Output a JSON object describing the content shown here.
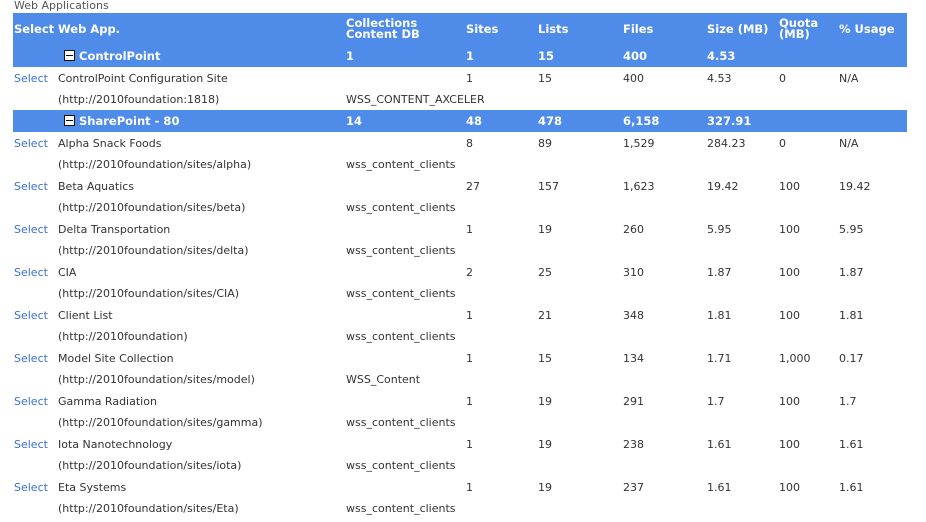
{
  "section_title": "Web Applications",
  "columns": [
    "Select",
    "Web App.",
    "Collections Content DB",
    "Sites",
    "Lists",
    "Files",
    "Size (MB)",
    "Quota (MB)",
    "% Usage"
  ],
  "colors": {
    "header_bg": "#4f8be8",
    "link": "#3b6fd0"
  },
  "groups": [
    {
      "name": "ControlPoint",
      "collections": "1",
      "sites": "1",
      "lists": "15",
      "files": "400",
      "size": "4.53",
      "rows": [
        {
          "select": "Select",
          "name": "ControlPoint Configuration Site",
          "url": "(http://2010foundation:1818)",
          "db": "WSS_CONTENT_AXCELER",
          "sites": "1",
          "lists": "15",
          "files": "400",
          "size": "4.53",
          "quota": "0",
          "usage": "N/A"
        }
      ]
    },
    {
      "name": "SharePoint - 80",
      "collections": "14",
      "sites": "48",
      "lists": "478",
      "files": "6,158",
      "size": "327.91",
      "rows": [
        {
          "select": "Select",
          "name": "Alpha Snack Foods",
          "url": "(http://2010foundation/sites/alpha)",
          "db": "wss_content_clients",
          "sites": "8",
          "lists": "89",
          "files": "1,529",
          "size": "284.23",
          "quota": "0",
          "usage": "N/A"
        },
        {
          "select": "Select",
          "name": "Beta Aquatics",
          "url": "(http://2010foundation/sites/beta)",
          "db": "wss_content_clients",
          "sites": "27",
          "lists": "157",
          "files": "1,623",
          "size": "19.42",
          "quota": "100",
          "usage": "19.42"
        },
        {
          "select": "Select",
          "name": "Delta Transportation",
          "url": "(http://2010foundation/sites/delta)",
          "db": "wss_content_clients",
          "sites": "1",
          "lists": "19",
          "files": "260",
          "size": "5.95",
          "quota": "100",
          "usage": "5.95"
        },
        {
          "select": "Select",
          "name": "CIA",
          "url": "(http://2010foundation/sites/CIA)",
          "db": "wss_content_clients",
          "sites": "2",
          "lists": "25",
          "files": "310",
          "size": "1.87",
          "quota": "100",
          "usage": "1.87"
        },
        {
          "select": "Select",
          "name": "Client List",
          "url": "(http://2010foundation)",
          "db": "wss_content_clients",
          "sites": "1",
          "lists": "21",
          "files": "348",
          "size": "1.81",
          "quota": "100",
          "usage": "1.81"
        },
        {
          "select": "Select",
          "name": "Model Site Collection",
          "url": "(http://2010foundation/sites/model)",
          "db": "WSS_Content",
          "sites": "1",
          "lists": "15",
          "files": "134",
          "size": "1.71",
          "quota": "1,000",
          "usage": "0.17"
        },
        {
          "select": "Select",
          "name": "Gamma Radiation",
          "url": "(http://2010foundation/sites/gamma)",
          "db": "wss_content_clients",
          "sites": "1",
          "lists": "19",
          "files": "291",
          "size": "1.7",
          "quota": "100",
          "usage": "1.7"
        },
        {
          "select": "Select",
          "name": "Iota Nanotechnology",
          "url": "(http://2010foundation/sites/iota)",
          "db": "wss_content_clients",
          "sites": "1",
          "lists": "19",
          "files": "238",
          "size": "1.61",
          "quota": "100",
          "usage": "1.61"
        },
        {
          "select": "Select",
          "name": "Eta Systems",
          "url": "(http://2010foundation/sites/Eta)",
          "db": "wss_content_clients",
          "sites": "1",
          "lists": "19",
          "files": "237",
          "size": "1.61",
          "quota": "100",
          "usage": "1.61"
        }
      ]
    }
  ]
}
